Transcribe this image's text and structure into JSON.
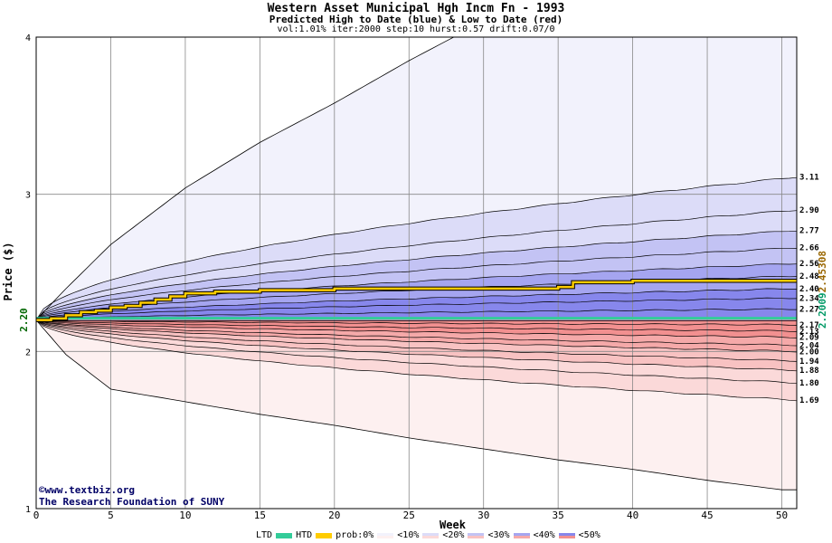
{
  "header": {
    "title": "Western Asset Municipal Hgh Incm Fn - 1993",
    "subtitle": "Predicted High to Date (blue) &  Low to Date (red)",
    "params": "vol:1.01% iter:2000 step:10 hurst:0.57 drift:0.07/0"
  },
  "credits": {
    "site": "©www.textbiz.org",
    "org": "The Research Foundation of SUNY"
  },
  "legend": {
    "ltd": "LTD",
    "htd": "HTD",
    "prob": "prob:0%",
    "bands": [
      "<10%",
      "<20%",
      "<30%",
      "<40%",
      "<50%"
    ],
    "colors": {
      "ltd": "#33cc99",
      "htd": "#ffcc00",
      "blue_bands": [
        "#f2f2fc",
        "#dcdcf8",
        "#c3c3f4",
        "#a5a5f0",
        "#8787ec"
      ],
      "red_bands": [
        "#fdf0f0",
        "#fbd9d9",
        "#f8c2c2",
        "#f5a9a9",
        "#f29090"
      ]
    }
  },
  "chart_data": {
    "type": "area",
    "xlabel": "Week",
    "ylabel": "Price ($)",
    "xlim": [
      0,
      51
    ],
    "ylim": [
      1,
      4
    ],
    "x_ticks": [
      0,
      5,
      10,
      15,
      20,
      25,
      30,
      35,
      40,
      45,
      50
    ],
    "y_ticks": [
      1,
      2,
      3,
      4
    ],
    "start_price": 2.2,
    "start_label": "2.20",
    "current_labels": [
      "2.2009",
      "2.45308"
    ],
    "upper_quantile_ends": [
      3.11,
      2.9,
      2.77,
      2.66,
      2.56,
      2.48,
      2.4,
      2.34,
      2.27
    ],
    "lower_quantile_ends": [
      2.17,
      2.13,
      2.09,
      2.04,
      2.0,
      1.94,
      1.88,
      1.8,
      1.69
    ],
    "right_labels": [
      "3.11",
      "2.90",
      "2.77",
      "2.66",
      "2.56",
      "2.48",
      "2.40",
      "2.34",
      "2.27",
      "2.17",
      "2.13",
      "2.09",
      "2.04",
      "2.00",
      "1.94",
      "1.88",
      "1.80",
      "1.69"
    ],
    "outer_upper": {
      "x": [
        0,
        2,
        5,
        10,
        15,
        20,
        25,
        28,
        30,
        51
      ],
      "y": [
        2.2,
        2.4,
        2.68,
        3.04,
        3.33,
        3.58,
        3.85,
        4.0,
        4.0,
        4.0
      ]
    },
    "outer_lower": {
      "x": [
        0,
        2,
        5,
        10,
        15,
        20,
        25,
        30,
        35,
        40,
        45,
        50
      ],
      "y": [
        2.2,
        1.98,
        1.76,
        1.68,
        1.6,
        1.53,
        1.45,
        1.38,
        1.31,
        1.25,
        1.18,
        1.12
      ]
    },
    "htd_series": {
      "x": [
        0,
        1,
        2,
        3,
        4,
        5,
        6,
        7,
        8,
        9,
        10,
        12,
        15,
        20,
        25,
        30,
        35,
        36,
        40,
        45,
        50,
        51
      ],
      "y": [
        2.2,
        2.21,
        2.23,
        2.25,
        2.26,
        2.28,
        2.29,
        2.31,
        2.33,
        2.35,
        2.37,
        2.38,
        2.39,
        2.4,
        2.4,
        2.4,
        2.41,
        2.44,
        2.45,
        2.45,
        2.45,
        2.45
      ]
    },
    "ltd_series": {
      "x": [
        0,
        51
      ],
      "y": [
        2.2,
        2.2
      ]
    }
  }
}
